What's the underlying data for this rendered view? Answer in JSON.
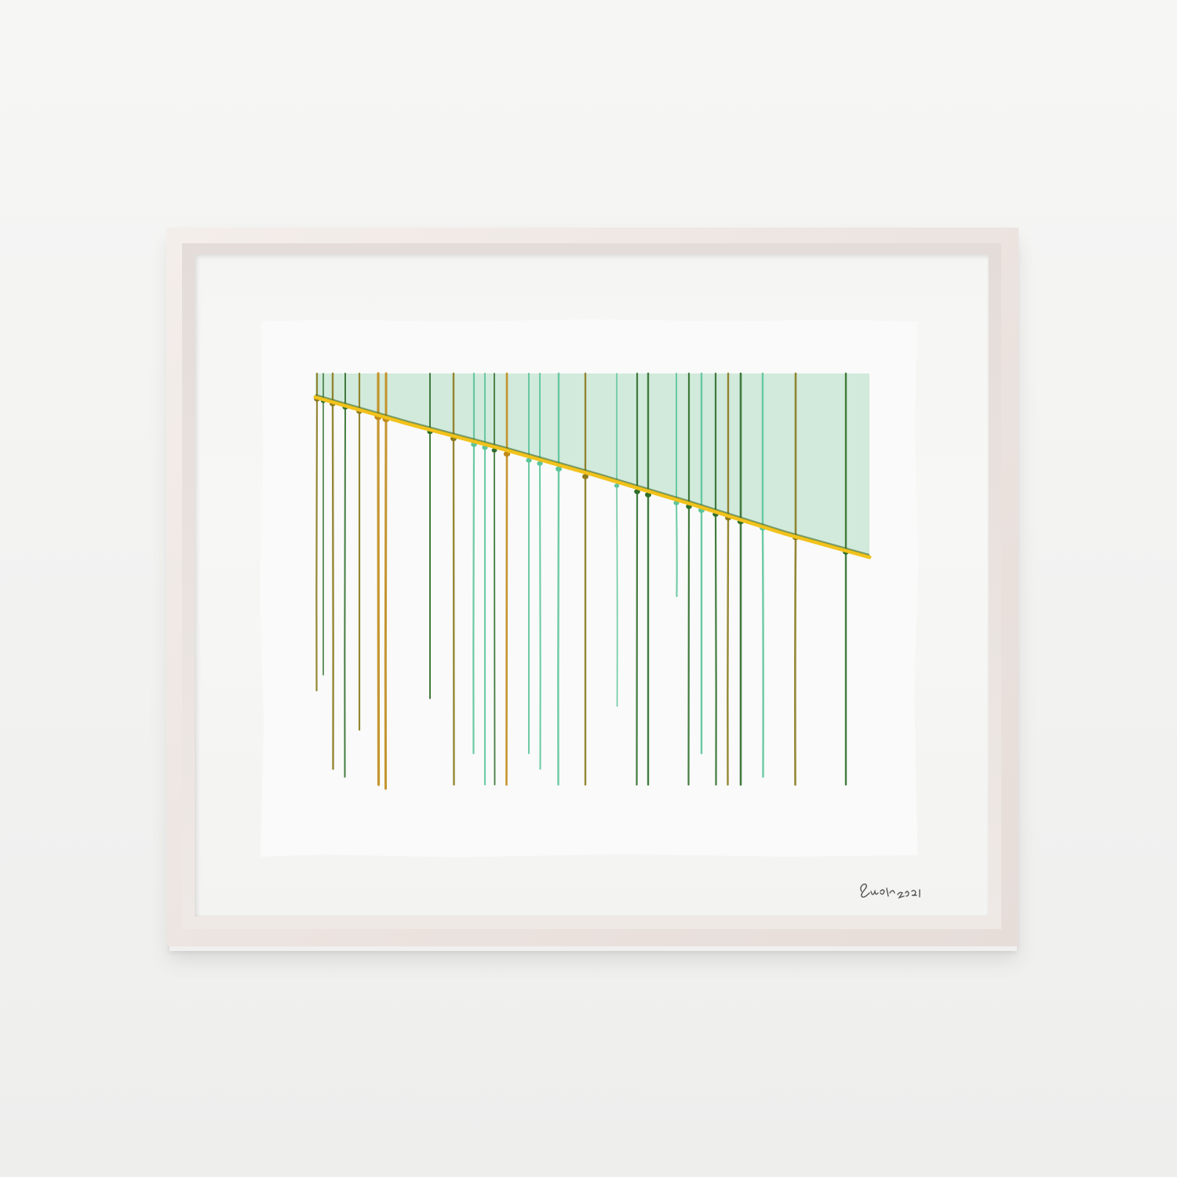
{
  "artwork": {
    "signature_text": "Suárez 2021"
  },
  "colors": {
    "wall": "#f4f4f3",
    "frame": "#ece4e0",
    "mat": "#f6f6f4",
    "paper": "#f9faf9",
    "wash": "#cfe9d9",
    "yellow_band": "#f2c21c",
    "drip_dark_green": "#2f6e2a",
    "drip_olive": "#8a7a1e",
    "drip_mint": "#5cc49a",
    "drip_ochre": "#c08a1a"
  }
}
